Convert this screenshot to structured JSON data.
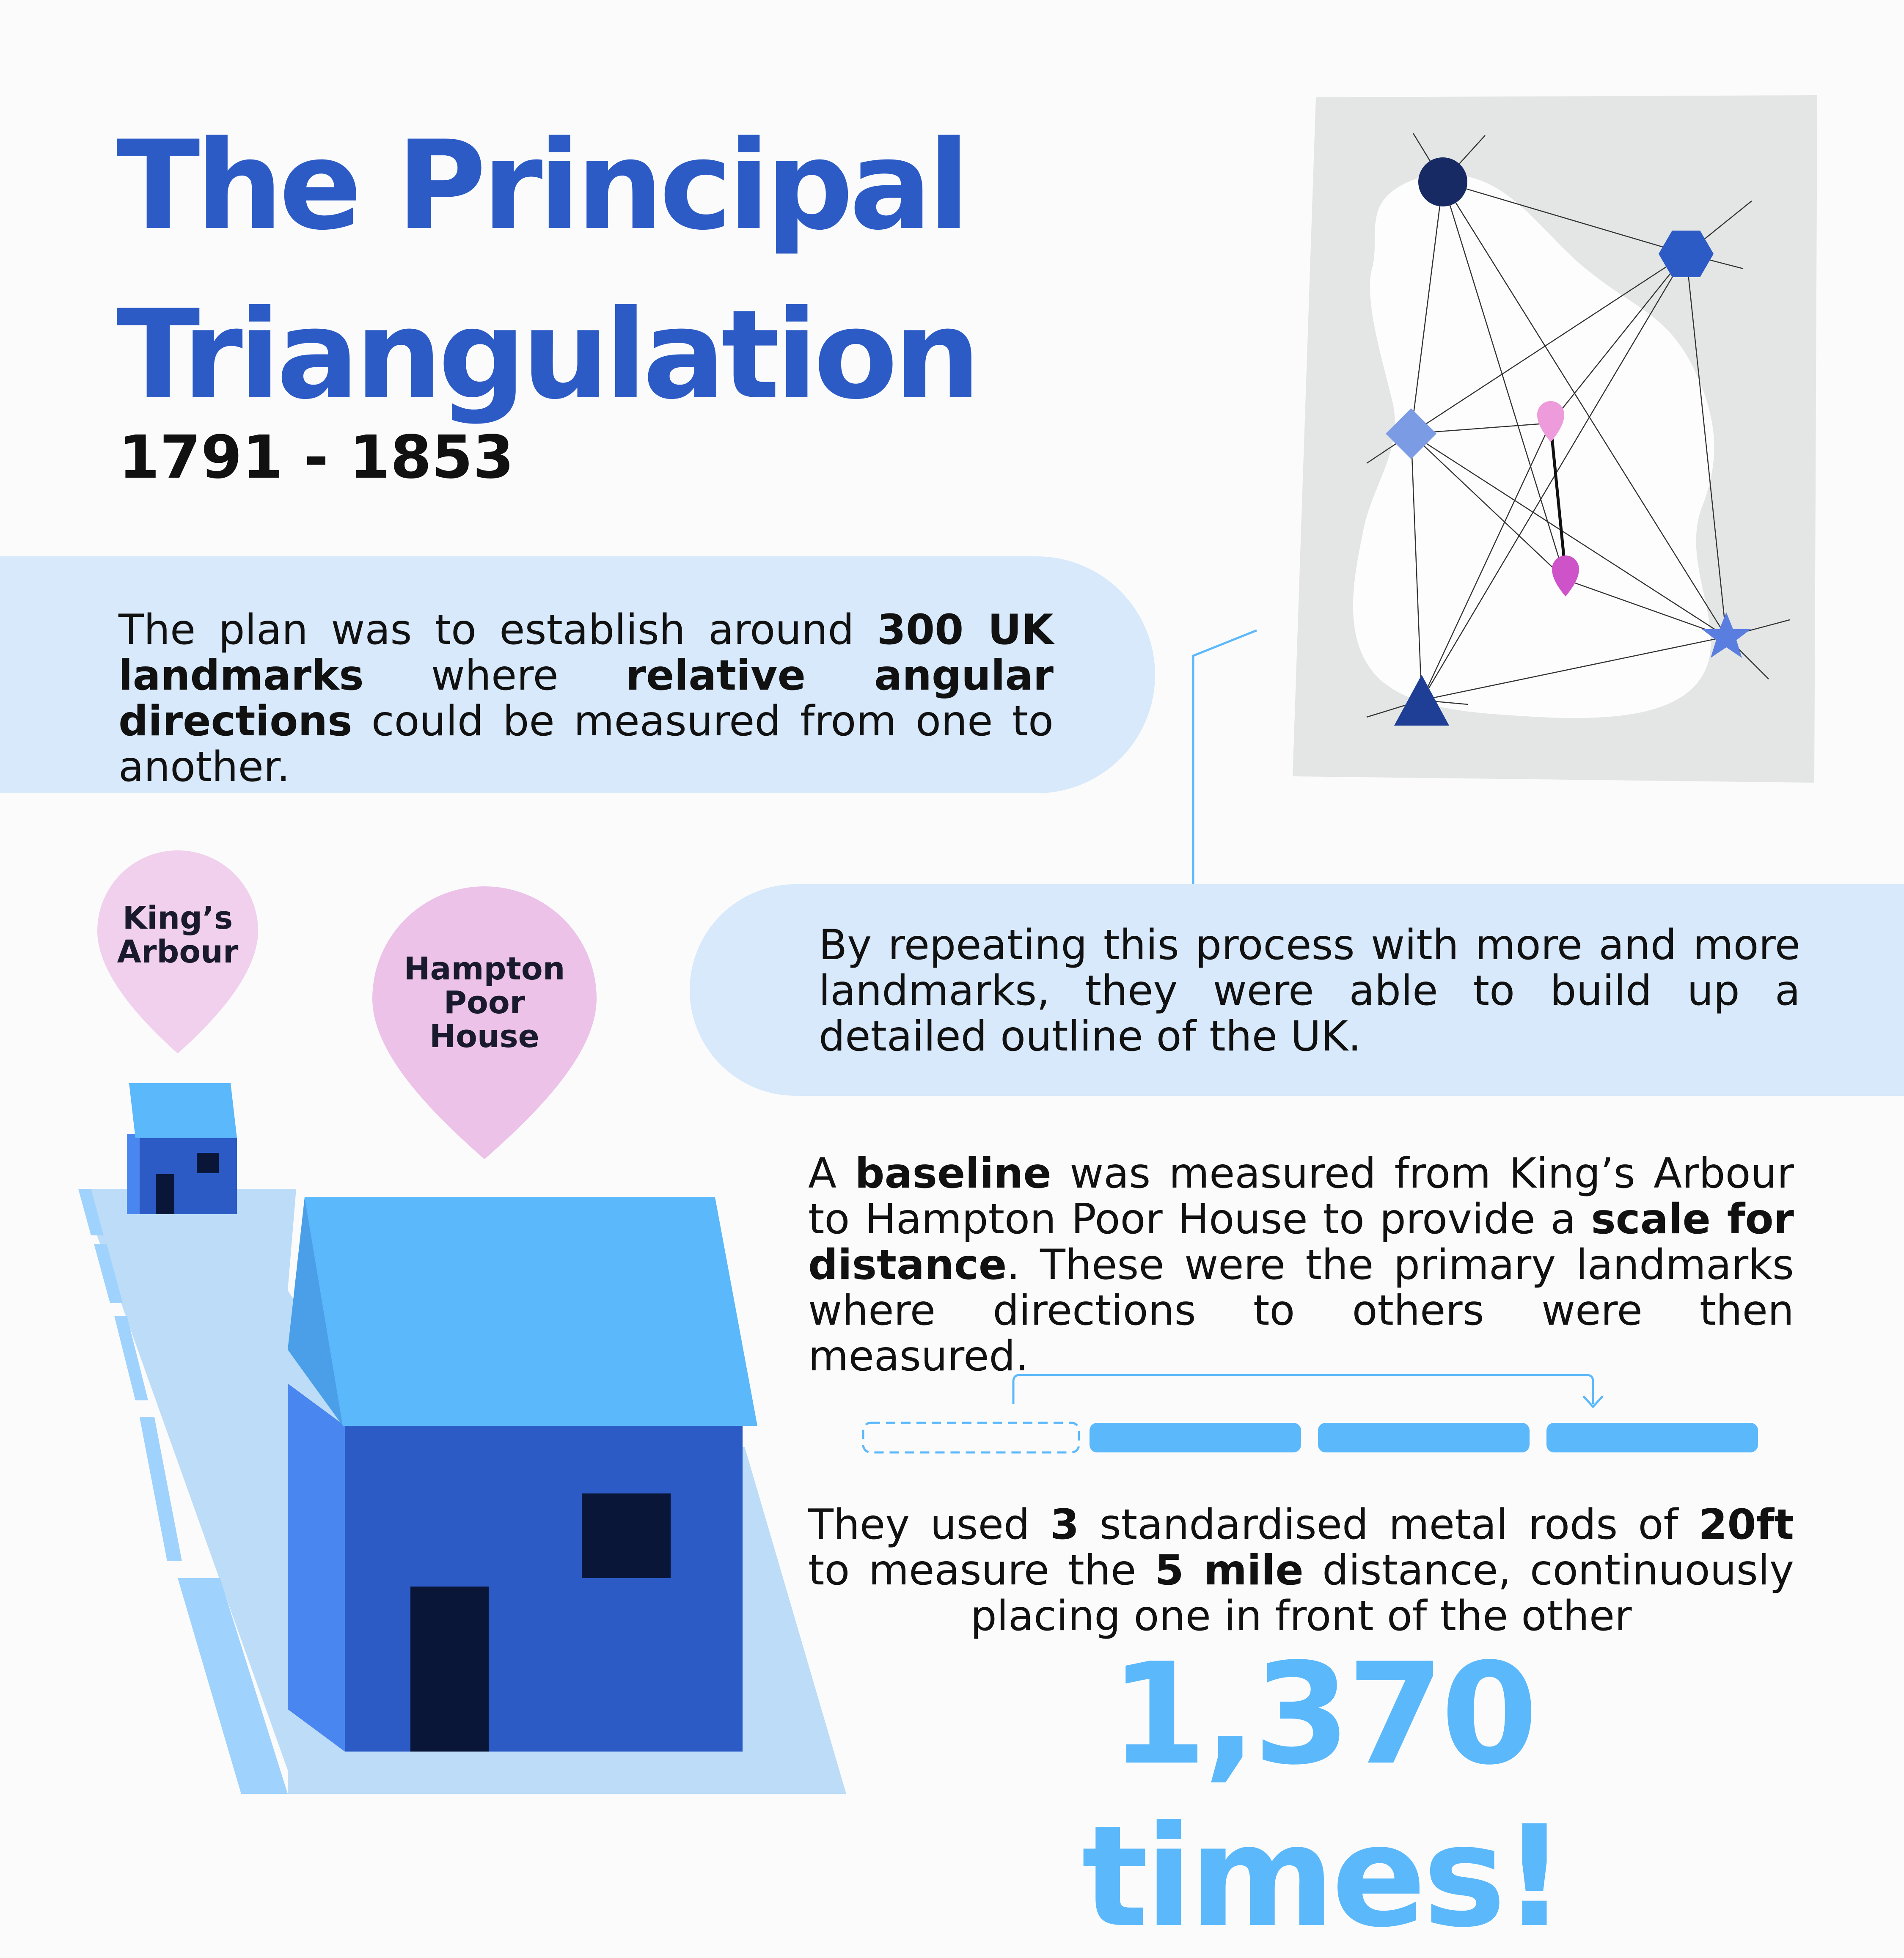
{
  "title": {
    "line1": "The Principal",
    "line2": "Triangulation",
    "years": "1791 - 1853"
  },
  "paragraph1": {
    "t1": "The plan was to establish around ",
    "b1": "300 UK landmarks",
    "t2": " where ",
    "b2": "relative angular directions",
    "t3": " could be measured from one to another."
  },
  "paragraph2": {
    "text": "By repeating this process with more and more landmarks, they were able to build up a detailed outline of the UK."
  },
  "paragraph3": {
    "t1": "A ",
    "b1": "baseline",
    "t2": " was measured from King’s Arbour to Hampton Poor House to provide a ",
    "b2": "scale for distance",
    "t3": ". These were the primary landmarks where directions to others were then measured."
  },
  "paragraph4": {
    "t1": "They used ",
    "b1": "3",
    "t2": " standardised metal rods of ",
    "b2": "20ft",
    "t3": " to measure the ",
    "b3": "5 mile",
    "t4": " distance, continuously placing one in front of the other"
  },
  "highlight": "1,370 times!",
  "pins": {
    "kings_line1": "King’s",
    "kings_line2": "Arbour",
    "hampton_line1": "Hampton",
    "hampton_line2": "Poor",
    "hampton_line3": "House"
  },
  "colors": {
    "title_blue": "#2c5bc6",
    "light_blue": "#5bb8fb",
    "pale_blue": "#d7e9fa",
    "pink": "#ecc2e8",
    "navy": "#091638"
  },
  "icons": [
    "network-diagram",
    "house-icon",
    "location-pin-icon",
    "rod-icon",
    "arrow-icon"
  ]
}
